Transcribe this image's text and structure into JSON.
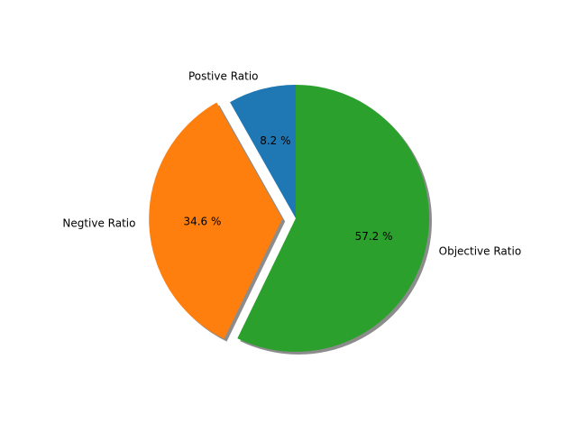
{
  "chart_data": {
    "type": "pie",
    "slices": [
      {
        "label": "Postive Ratio",
        "value": 8.2,
        "pct_label": "8.2 %",
        "color": "#1f77b4",
        "explode": false
      },
      {
        "label": "Negtive Ratio",
        "value": 34.6,
        "pct_label": "34.6 %",
        "color": "#ff7f0e",
        "explode": true
      },
      {
        "label": "Objective Ratio",
        "value": 57.2,
        "pct_label": "57.2 %",
        "color": "#2ca02c",
        "explode": false
      }
    ],
    "start_angle": "top (90°)",
    "direction": "counterclockwise",
    "shadow": true,
    "legend": "none"
  }
}
